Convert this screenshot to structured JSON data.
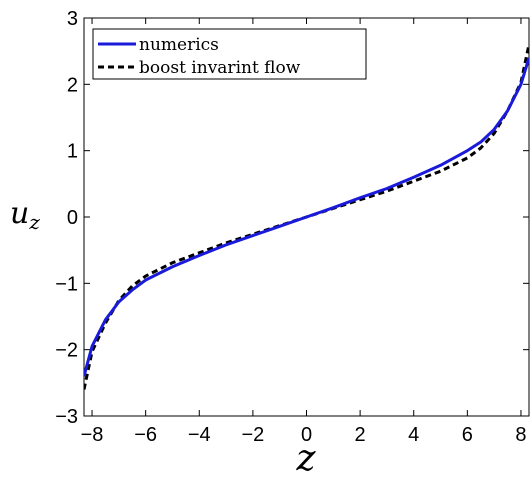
{
  "chart_data": {
    "type": "line",
    "xlabel": "z",
    "ylabel": "u",
    "ylabel_sub": "z",
    "xlim": [
      -8.3,
      8.3
    ],
    "ylim": [
      -3,
      3
    ],
    "xticks": [
      -8,
      -6,
      -4,
      -2,
      0,
      2,
      4,
      6,
      8
    ],
    "yticks": [
      -3,
      -2,
      -1,
      0,
      1,
      2,
      3
    ],
    "xtick_labels": [
      "−8",
      "−6",
      "−4",
      "−2",
      "0",
      "2",
      "4",
      "6",
      "8"
    ],
    "ytick_labels": [
      "−3",
      "−2",
      "−1",
      "0",
      "1",
      "2",
      "3"
    ],
    "grid": false,
    "legend_position": "top-left",
    "series": [
      {
        "name": "numerics",
        "color": "#1a1adb",
        "style": "solid",
        "x": [
          -8.3,
          -8.0,
          -7.5,
          -7.0,
          -6.5,
          -6.0,
          -5.0,
          -4.0,
          -3.0,
          -2.0,
          -1.0,
          0.0,
          1.0,
          2.0,
          3.0,
          4.0,
          5.0,
          6.0,
          6.5,
          7.0,
          7.5,
          8.0,
          8.3
        ],
        "y": [
          -2.4,
          -1.95,
          -1.55,
          -1.28,
          -1.1,
          -0.95,
          -0.75,
          -0.58,
          -0.42,
          -0.28,
          -0.14,
          0.0,
          0.14,
          0.29,
          0.43,
          0.6,
          0.78,
          1.0,
          1.13,
          1.32,
          1.6,
          2.0,
          2.4
        ]
      },
      {
        "name": "boost invarint flow",
        "color": "#000000",
        "style": "dashed",
        "x": [
          -8.3,
          -8.0,
          -7.5,
          -7.0,
          -6.5,
          -6.0,
          -5.0,
          -4.0,
          -3.0,
          -2.0,
          -1.0,
          0.0,
          1.0,
          2.0,
          3.0,
          4.0,
          5.0,
          6.0,
          6.5,
          7.0,
          7.5,
          8.0,
          8.3
        ],
        "y": [
          -2.6,
          -2.03,
          -1.6,
          -1.26,
          -1.04,
          -0.89,
          -0.69,
          -0.54,
          -0.39,
          -0.26,
          -0.13,
          0.0,
          0.13,
          0.26,
          0.39,
          0.54,
          0.69,
          0.89,
          1.04,
          1.26,
          1.6,
          2.03,
          2.6
        ]
      }
    ]
  }
}
